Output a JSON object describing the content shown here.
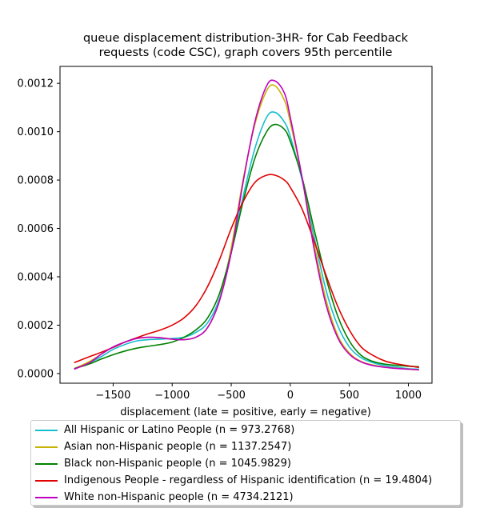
{
  "chart_data": {
    "type": "line",
    "title": "queue displacement distribution-3HR-  for Cab Feedback\nrequests (code CSC), graph covers 95th percentile",
    "xlabel": "displacement (late = positive, early = negative)",
    "ylabel": "",
    "xlim": [
      -1950,
      1200
    ],
    "ylim": [
      -4e-05,
      0.00127
    ],
    "xticks": [
      -1500,
      -1000,
      -500,
      0,
      500,
      1000
    ],
    "xtick_labels": [
      "−1500",
      "−1000",
      "−500",
      "0",
      "500",
      "1000"
    ],
    "yticks": [
      0,
      0.0002,
      0.0004,
      0.0006,
      0.0008,
      0.001,
      0.0012
    ],
    "ytick_labels": [
      "0.0000",
      "0.0002",
      "0.0004",
      "0.0006",
      "0.0008",
      "0.0010",
      "0.0012"
    ],
    "grid": false,
    "legend_position": "below",
    "x": [
      -1830,
      -1700,
      -1600,
      -1500,
      -1400,
      -1300,
      -1200,
      -1100,
      -1000,
      -900,
      -800,
      -700,
      -600,
      -500,
      -400,
      -300,
      -200,
      -130,
      -50,
      0,
      100,
      200,
      300,
      400,
      500,
      600,
      700,
      800,
      900,
      1000,
      1090
    ],
    "series": [
      {
        "name": "All Hispanic or Latino People (n = 973.2768)",
        "color": "#17becf",
        "values": [
          2e-05,
          4.5e-05,
          7e-05,
          0.0001,
          0.00012,
          0.000135,
          0.00014,
          0.000142,
          0.000145,
          0.00015,
          0.00017,
          0.00021,
          0.00031,
          0.0005,
          0.00073,
          0.00093,
          0.00106,
          0.00108,
          0.00104,
          0.00098,
          0.0008,
          0.00057,
          0.00035,
          0.0002,
          0.00011,
          6.5e-05,
          4.5e-05,
          3.3e-05,
          2.7e-05,
          2e-05,
          1.8e-05
        ]
      },
      {
        "name": "Asian non-Hispanic people (n = 1137.2547)",
        "color": "#c8b400",
        "values": [
          2e-05,
          5e-05,
          8e-05,
          0.00011,
          0.00013,
          0.000145,
          0.00015,
          0.000148,
          0.000142,
          0.00014,
          0.00015,
          0.00019,
          0.0003,
          0.00052,
          0.0008,
          0.00103,
          0.00117,
          0.00119,
          0.00113,
          0.00104,
          0.00081,
          0.00054,
          0.00031,
          0.00016,
          8.5e-05,
          5e-05,
          3.5e-05,
          2.7e-05,
          2.2e-05,
          1.8e-05,
          1.5e-05
        ]
      },
      {
        "name": "Black non-Hispanic people (n = 1045.9829)",
        "color": "#008000",
        "values": [
          2e-05,
          4e-05,
          6e-05,
          7.8e-05,
          9.3e-05,
          0.000105,
          0.000113,
          0.00012,
          0.00013,
          0.00015,
          0.00018,
          0.00023,
          0.00033,
          0.0005,
          0.00071,
          0.00089,
          0.001,
          0.00103,
          0.00101,
          0.00096,
          0.00081,
          0.0006,
          0.0004,
          0.00024,
          0.000135,
          7.5e-05,
          5e-05,
          3.9e-05,
          3.4e-05,
          3e-05,
          2.8e-05
        ]
      },
      {
        "name": "Indigenous People - regardless of Hispanic identification (n = 19.4804)",
        "color": "#e00000",
        "values": [
          4.5e-05,
          7e-05,
          8.8e-05,
          0.000108,
          0.00013,
          0.000148,
          0.000165,
          0.00018,
          0.0002,
          0.00023,
          0.00028,
          0.00036,
          0.00047,
          0.0006,
          0.00071,
          0.00079,
          0.00082,
          0.00082,
          0.0008,
          0.00077,
          0.00068,
          0.00055,
          0.00041,
          0.00028,
          0.00018,
          0.00011,
          7.5e-05,
          5.2e-05,
          4e-05,
          3.2e-05,
          2.5e-05
        ]
      },
      {
        "name": "White non-Hispanic people (n = 4734.2121)",
        "color": "#c000c0",
        "values": [
          1.8e-05,
          4.5e-05,
          8e-05,
          0.00011,
          0.00013,
          0.000145,
          0.00015,
          0.000148,
          0.000142,
          0.00014,
          0.00015,
          0.00019,
          0.0003,
          0.0005,
          0.00079,
          0.00104,
          0.00119,
          0.00121,
          0.00116,
          0.00106,
          0.00081,
          0.00052,
          0.00029,
          0.00015,
          8e-05,
          4.8e-05,
          3.3e-05,
          2.6e-05,
          2.1e-05,
          1.8e-05,
          1.5e-05
        ]
      }
    ]
  }
}
